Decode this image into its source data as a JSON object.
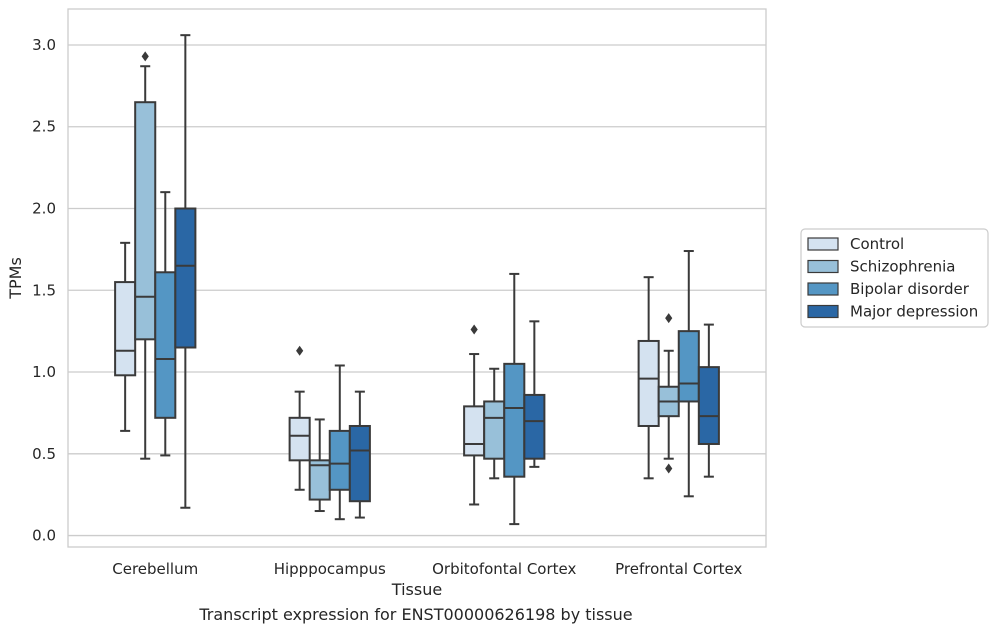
{
  "chart_data": {
    "type": "box",
    "xlabel": "Tissue",
    "ylabel": "TPMs",
    "ylim": [
      -0.07,
      3.22
    ],
    "yticks": [
      "0.0",
      "0.5",
      "1.0",
      "1.5",
      "2.0",
      "2.5",
      "3.0"
    ],
    "grid": "horizontal",
    "legend_position": "right",
    "categories": [
      "Cerebellum",
      "Hipppocampus",
      "Orbitofontal Cortex",
      "Prefrontal Cortex"
    ],
    "series": [
      {
        "name": "Control",
        "color": "#d4e2f0",
        "boxes": [
          {
            "whislo": 0.64,
            "q1": 0.98,
            "med": 1.13,
            "q3": 1.55,
            "whishi": 1.79,
            "fliers": []
          },
          {
            "whislo": 0.28,
            "q1": 0.46,
            "med": 0.61,
            "q3": 0.72,
            "whishi": 0.88,
            "fliers": [
              1.13
            ]
          },
          {
            "whislo": 0.19,
            "q1": 0.49,
            "med": 0.56,
            "q3": 0.79,
            "whishi": 1.11,
            "fliers": [
              1.26
            ]
          },
          {
            "whislo": 0.35,
            "q1": 0.67,
            "med": 0.96,
            "q3": 1.19,
            "whishi": 1.58,
            "fliers": []
          }
        ]
      },
      {
        "name": "Schizophrenia",
        "color": "#98c0d9",
        "boxes": [
          {
            "whislo": 0.47,
            "q1": 1.2,
            "med": 1.46,
            "q3": 2.65,
            "whishi": 2.87,
            "fliers": [
              2.93
            ]
          },
          {
            "whislo": 0.15,
            "q1": 0.22,
            "med": 0.43,
            "q3": 0.46,
            "whishi": 0.71,
            "fliers": []
          },
          {
            "whislo": 0.35,
            "q1": 0.47,
            "med": 0.72,
            "q3": 0.82,
            "whishi": 1.02,
            "fliers": []
          },
          {
            "whislo": 0.47,
            "q1": 0.73,
            "med": 0.82,
            "q3": 0.91,
            "whishi": 1.13,
            "fliers": [
              1.33,
              0.41
            ]
          }
        ]
      },
      {
        "name": "Bipolar disorder",
        "color": "#5496c4",
        "boxes": [
          {
            "whislo": 0.49,
            "q1": 0.72,
            "med": 1.08,
            "q3": 1.61,
            "whishi": 2.1,
            "fliers": []
          },
          {
            "whislo": 0.1,
            "q1": 0.28,
            "med": 0.44,
            "q3": 0.64,
            "whishi": 1.04,
            "fliers": []
          },
          {
            "whislo": 0.07,
            "q1": 0.36,
            "med": 0.78,
            "q3": 1.05,
            "whishi": 1.6,
            "fliers": []
          },
          {
            "whislo": 0.24,
            "q1": 0.82,
            "med": 0.93,
            "q3": 1.25,
            "whishi": 1.74,
            "fliers": []
          }
        ]
      },
      {
        "name": "Major depression",
        "color": "#2a67a5",
        "boxes": [
          {
            "whislo": 0.17,
            "q1": 1.15,
            "med": 1.65,
            "q3": 2.0,
            "whishi": 3.06,
            "fliers": []
          },
          {
            "whislo": 0.11,
            "q1": 0.21,
            "med": 0.52,
            "q3": 0.67,
            "whishi": 0.88,
            "fliers": []
          },
          {
            "whislo": 0.42,
            "q1": 0.47,
            "med": 0.7,
            "q3": 0.86,
            "whishi": 1.31,
            "fliers": []
          },
          {
            "whislo": 0.36,
            "q1": 0.56,
            "med": 0.73,
            "q3": 1.03,
            "whishi": 1.29,
            "fliers": []
          }
        ]
      }
    ]
  },
  "caption": "Transcript expression for ENST00000626198 by tissue"
}
